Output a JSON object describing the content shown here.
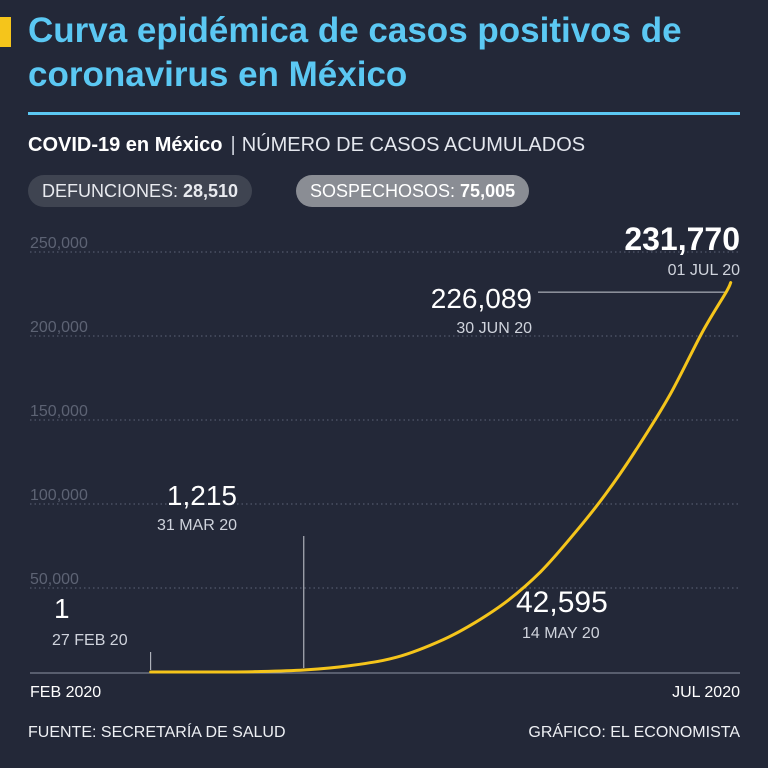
{
  "header": {
    "title": "Curva epidémica de casos positivos de coronavirus en México",
    "subtitle_strong": "COVID-19 en México",
    "subtitle_sep": "|",
    "subtitle_light": "NÚMERO DE CASOS ACUMULADOS"
  },
  "badges": {
    "deaths_label": "DEFUNCIONES: ",
    "deaths_value": "28,510",
    "suspected_label": "SOSPECHOSOS: ",
    "suspected_value": "75,005"
  },
  "footer": {
    "source": "FUENTE: SECRETARÍA DE SALUD",
    "credit": "GRÁFICO: EL ECONOMISTA"
  },
  "colors": {
    "background": "#232838",
    "title": "#5bc8f3",
    "line": "#f5c51b",
    "gridline": "#5e6577",
    "tick_label": "#5d6374"
  },
  "chart_data": {
    "type": "line",
    "x_start_label": "FEB 2020",
    "x_end_label": "JUL 2020",
    "ylim": [
      0,
      250000
    ],
    "y_ticks": [
      50000,
      100000,
      150000,
      200000,
      250000
    ],
    "y_tick_labels": [
      "50,000",
      "100,000",
      "150,000",
      "200,000",
      "250,000"
    ],
    "grid": true,
    "series": [
      {
        "x": [
          "2020-02-27",
          "2020-03-10",
          "2020-03-20",
          "2020-03-31",
          "2020-04-10",
          "2020-04-20",
          "2020-04-30",
          "2020-05-07",
          "2020-05-14",
          "2020-05-21",
          "2020-05-28",
          "2020-06-04",
          "2020-06-11",
          "2020-06-18",
          "2020-06-25",
          "2020-06-30",
          "2020-07-01"
        ],
        "y": [
          1,
          7,
          200,
          1215,
          3800,
          8800,
          19200,
          29600,
          42595,
          59600,
          81400,
          105700,
          133900,
          165500,
          202900,
          226089,
          231770
        ]
      }
    ],
    "annotations": [
      {
        "date": "2020-02-27",
        "value_label": "1",
        "date_label": "27 FEB 20"
      },
      {
        "date": "2020-03-31",
        "value_label": "1,215",
        "date_label": "31 MAR 20"
      },
      {
        "date": "2020-05-14",
        "value_label": "42,595",
        "date_label": "14 MAY 20"
      },
      {
        "date": "2020-06-30",
        "value_label": "226,089",
        "date_label": "30 JUN 20"
      },
      {
        "date": "2020-07-01",
        "value_label": "231,770",
        "date_label": "01 JUL 20"
      }
    ]
  }
}
